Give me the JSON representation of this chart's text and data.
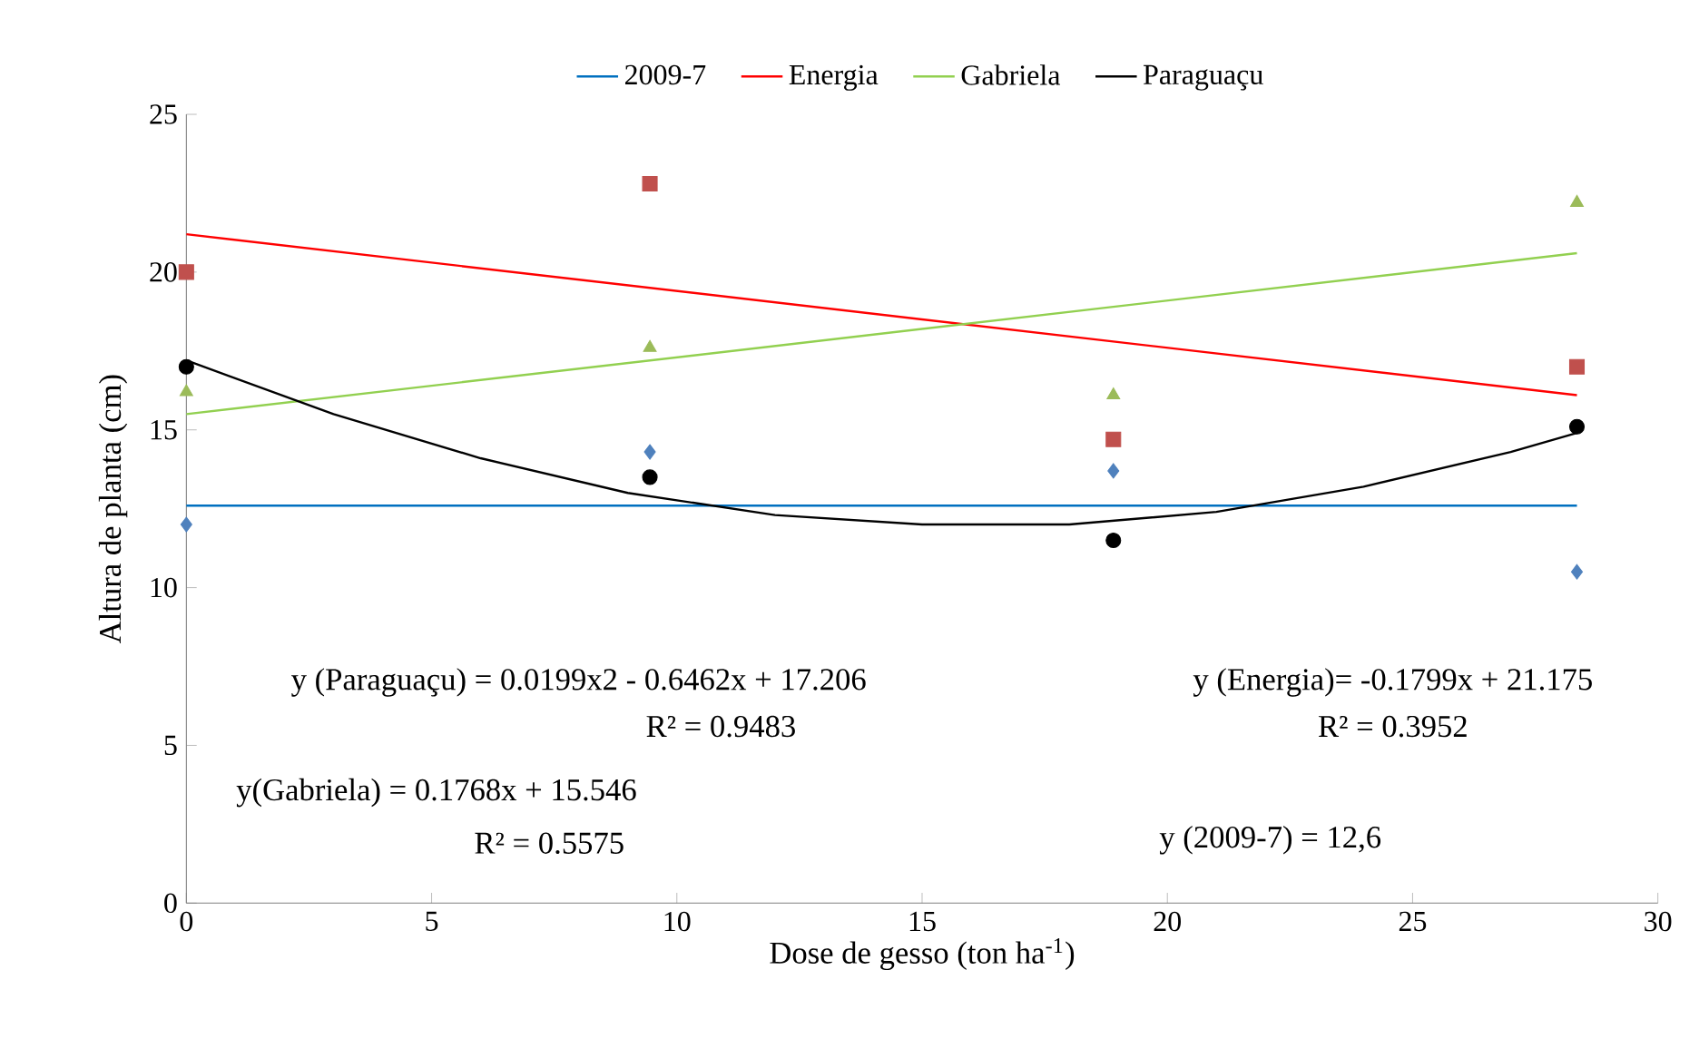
{
  "chart_data": {
    "type": "scatter",
    "xlabel": "Dose de gesso (ton ha$^{-1}$)",
    "ylabel": "Altura de planta (cm)",
    "xlim": [
      0,
      30
    ],
    "ylim": [
      0,
      25
    ],
    "xticks": [
      0,
      5,
      10,
      15,
      20,
      25,
      30
    ],
    "yticks": [
      0,
      5,
      10,
      15,
      20,
      25
    ],
    "grid": false,
    "legend": "top",
    "series": [
      {
        "color": "#4f81bd",
        "marker": "diamond",
        "x": [
          0,
          9.45,
          18.9,
          28.35
        ],
        "values": [
          12.0,
          14.3,
          13.7,
          10.5
        ]
      },
      {
        "color": "#c0504d",
        "marker": "square",
        "x": [
          0,
          9.45,
          18.9,
          28.35
        ],
        "values": [
          20.0,
          22.8,
          14.7,
          17.0
        ]
      },
      {
        "color": "#9bbb59",
        "marker": "triangle",
        "x": [
          0,
          9.45,
          18.9,
          28.35
        ],
        "values": [
          16.2,
          17.6,
          16.1,
          22.2
        ]
      },
      {
        "color": "#000000",
        "marker": "circle",
        "x": [
          0,
          9.45,
          18.9,
          28.35
        ],
        "values": [
          17.0,
          13.5,
          11.5,
          15.1
        ]
      },
      {
        "type": "line",
        "name": "2009-7",
        "color": "#0070c0",
        "marker": "none",
        "x": [
          0,
          28.35
        ],
        "values": [
          12.6,
          12.6
        ]
      },
      {
        "type": "line",
        "name": "Energia",
        "color": "#ff0000",
        "marker": "none",
        "x": [
          0,
          28.35
        ],
        "values": [
          21.2,
          16.1
        ]
      },
      {
        "type": "line",
        "name": "Gabriela",
        "color": "#92d050",
        "marker": "none",
        "x": [
          0,
          28.35
        ],
        "values": [
          15.5,
          20.6
        ]
      },
      {
        "type": "line",
        "name": "Paraguaçu",
        "color": "#000000",
        "marker": "none",
        "x": [
          0,
          3,
          6,
          9,
          12,
          15,
          18,
          21,
          24,
          27,
          28.35
        ],
        "values": [
          17.2,
          15.5,
          14.1,
          13.0,
          12.3,
          12.0,
          12.0,
          12.4,
          13.2,
          14.3,
          14.9
        ]
      }
    ],
    "annotations": [
      "y (Paraguaçu) = 0.0199x2 - 0.6462x + 17.206",
      "R² = 0.9483",
      "y(Gabriela) = 0.1768x + 15.546",
      "R² = 0.5575",
      "y (Energia)= -0.1799x + 21.175",
      "R² = 0.3952",
      "y (2009-7) = 12,6"
    ]
  }
}
